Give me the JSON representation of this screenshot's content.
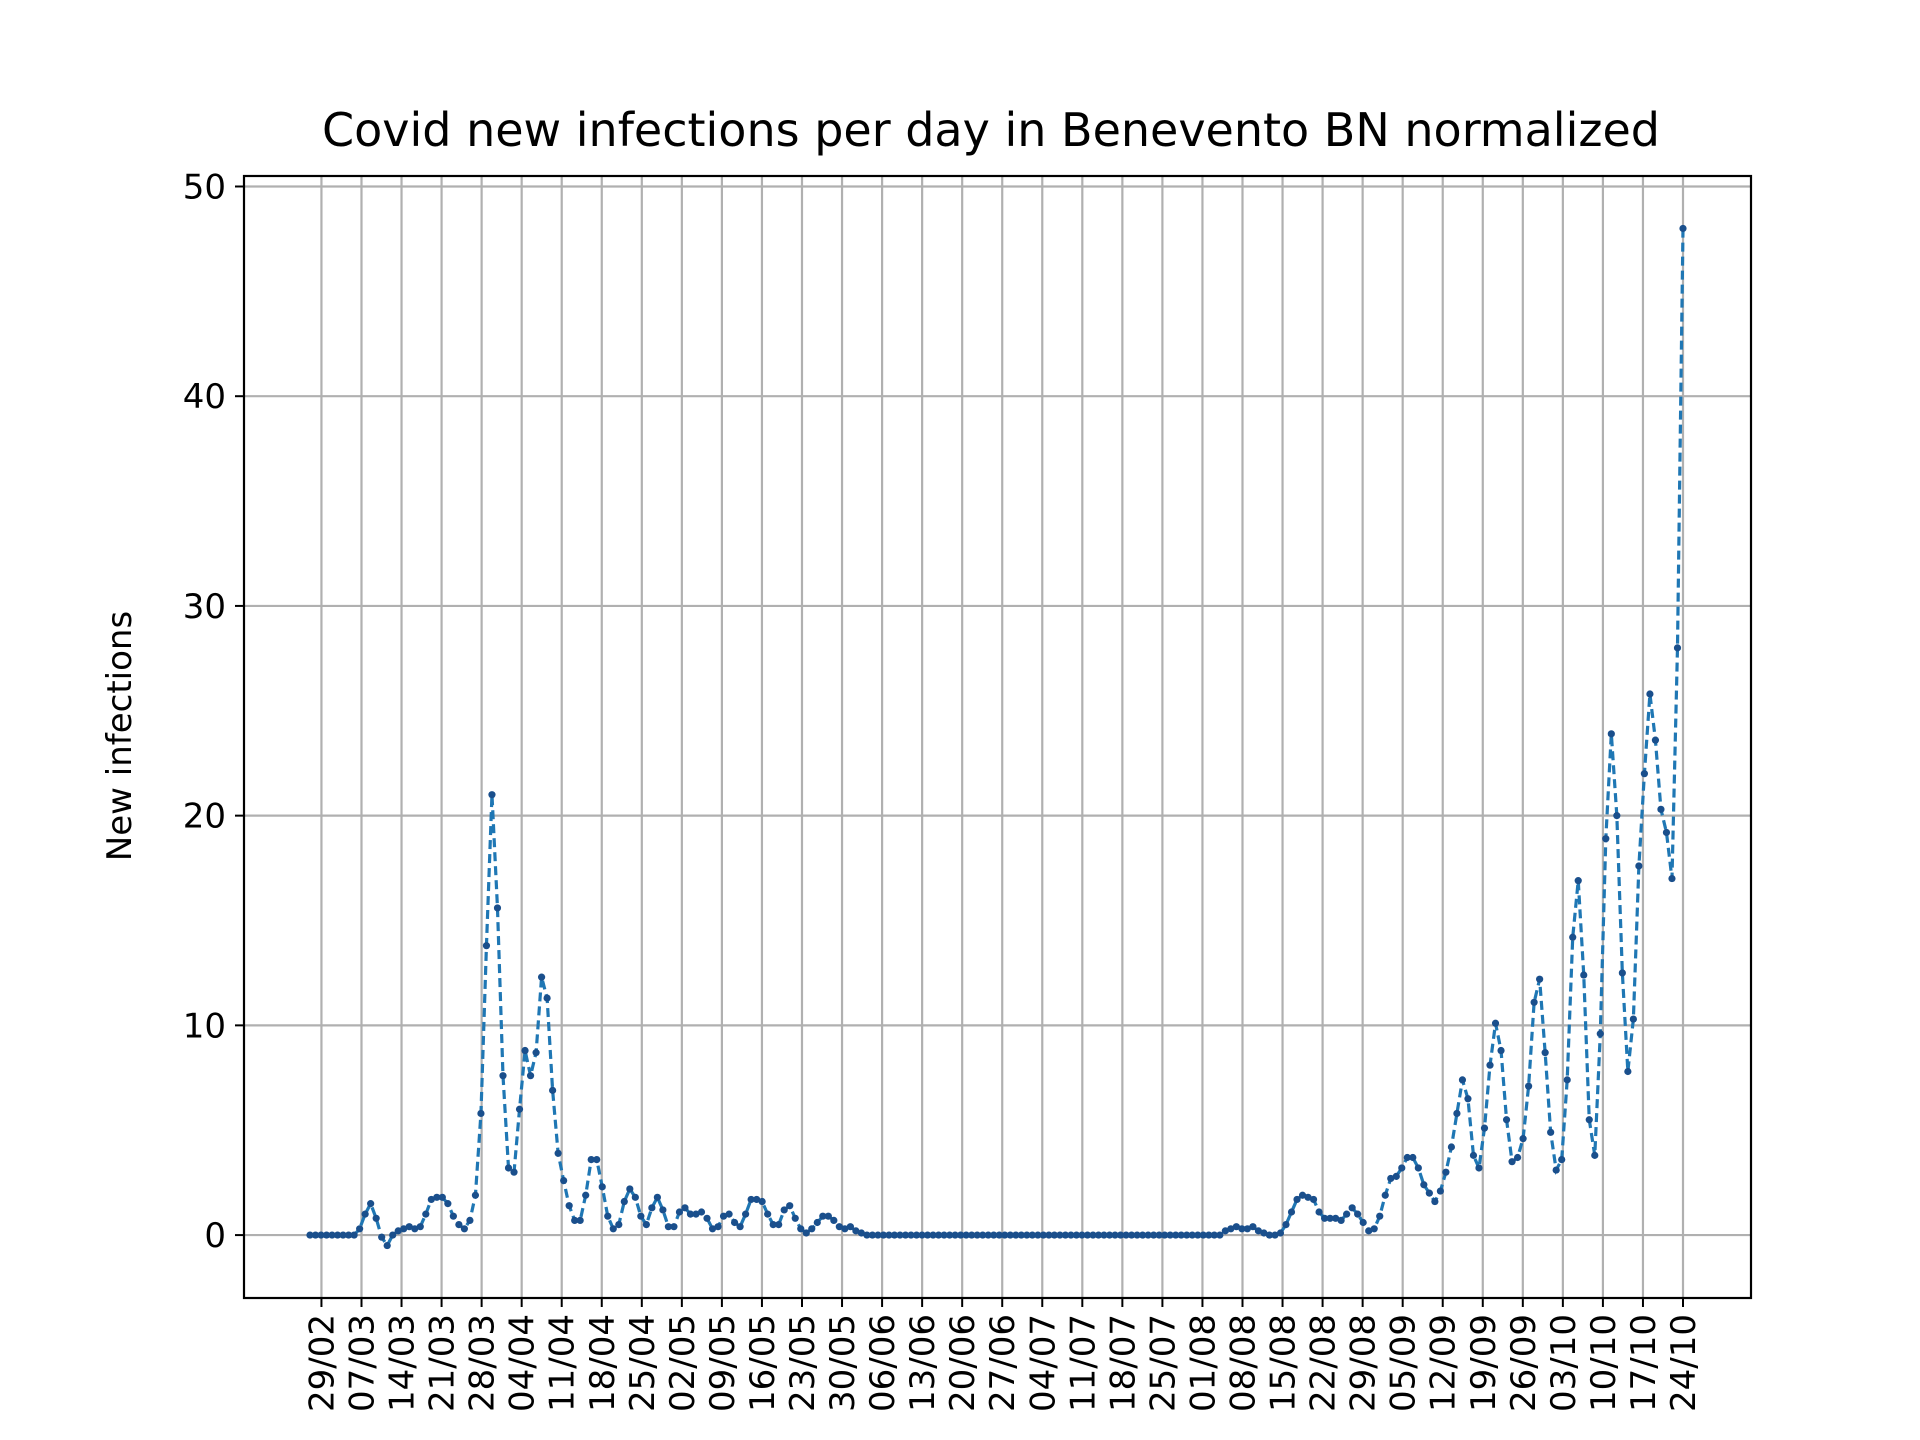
{
  "chart_data": {
    "type": "line",
    "title": "Covid new infections per day in Benevento BN normalized",
    "xlabel": "",
    "ylabel": "New infections",
    "ylim": [
      -3,
      50.5
    ],
    "yticks": [
      0,
      10,
      20,
      30,
      40,
      50
    ],
    "grid": true,
    "line_style": "dashed",
    "marker": "dot",
    "colors": {
      "line": "#1f77b4",
      "marker": "#1a4f8c"
    },
    "x_tick_labels": [
      "29/02",
      "07/03",
      "14/03",
      "21/03",
      "28/03",
      "04/04",
      "11/04",
      "18/04",
      "25/04",
      "02/05",
      "09/05",
      "16/05",
      "23/05",
      "30/05",
      "06/06",
      "13/06",
      "20/06",
      "27/06",
      "04/07",
      "11/07",
      "18/07",
      "25/07",
      "01/08",
      "08/08",
      "15/08",
      "22/08",
      "29/08",
      "05/09",
      "12/09",
      "19/09",
      "26/09",
      "03/10",
      "10/10",
      "17/10",
      "24/10"
    ],
    "x_start": "2020-02-27",
    "x_end": "2020-10-24",
    "series": [
      {
        "values": [
          0,
          0,
          0,
          0,
          0,
          0,
          0,
          0,
          0,
          0.3,
          1.0,
          1.5,
          0.8,
          -0.1,
          -0.5,
          0,
          0.2,
          0.3,
          0.4,
          0.3,
          0.4,
          1.0,
          1.7,
          1.8,
          1.8,
          1.5,
          0.9,
          0.5,
          0.3,
          0.7,
          1.9,
          5.8,
          13.8,
          21.0,
          15.6,
          7.6,
          3.2,
          3.0,
          6.0,
          8.8,
          7.6,
          8.7,
          12.3,
          11.3,
          6.9,
          3.9,
          2.6,
          1.4,
          0.7,
          0.7,
          1.9,
          3.6,
          3.6,
          2.3,
          0.9,
          0.3,
          0.5,
          1.6,
          2.2,
          1.8,
          0.9,
          0.5,
          1.3,
          1.8,
          1.2,
          0.4,
          0.4,
          1.1,
          1.3,
          1.0,
          1.0,
          1.1,
          0.8,
          0.3,
          0.4,
          0.9,
          1.0,
          0.6,
          0.4,
          1.0,
          1.7,
          1.7,
          1.6,
          1.0,
          0.5,
          0.5,
          1.2,
          1.4,
          0.8,
          0.3,
          0.1,
          0.3,
          0.6,
          0.9,
          0.9,
          0.7,
          0.4,
          0.3,
          0.4,
          0.2,
          0.1,
          0,
          0,
          0,
          0,
          0,
          0,
          0,
          0,
          0,
          0,
          0,
          0,
          0,
          0,
          0,
          0,
          0,
          0,
          0,
          0,
          0,
          0,
          0,
          0,
          0,
          0,
          0,
          0,
          0,
          0,
          0,
          0,
          0,
          0,
          0,
          0,
          0,
          0,
          0,
          0,
          0,
          0,
          0,
          0,
          0,
          0,
          0,
          0,
          0,
          0,
          0,
          0,
          0,
          0,
          0,
          0,
          0,
          0,
          0,
          0,
          0,
          0,
          0,
          0,
          0,
          0.2,
          0.3,
          0.4,
          0.3,
          0.3,
          0.4,
          0.2,
          0.1,
          0,
          0,
          0.1,
          0.5,
          1.1,
          1.7,
          1.9,
          1.8,
          1.7,
          1.1,
          0.8,
          0.8,
          0.8,
          0.7,
          1.0,
          1.3,
          1.0,
          0.6,
          0.2,
          0.3,
          0.9,
          1.9,
          2.7,
          2.8,
          3.2,
          3.7,
          3.7,
          3.2,
          2.4,
          2.0,
          1.6,
          2.1,
          3.0,
          4.2,
          5.8,
          7.4,
          6.5,
          3.8,
          3.2,
          5.1,
          8.1,
          10.1,
          8.8,
          5.5,
          3.5,
          3.7,
          4.6,
          7.1,
          11.1,
          12.2,
          8.7,
          4.9,
          3.1,
          3.6,
          7.4,
          14.2,
          16.9,
          12.4,
          5.5,
          3.8,
          9.6,
          18.9,
          23.9,
          20.0,
          12.5,
          7.8,
          10.3,
          17.6,
          22.0,
          25.8,
          23.6,
          20.3,
          19.2,
          17.0,
          28.0,
          48.0
        ]
      }
    ]
  }
}
